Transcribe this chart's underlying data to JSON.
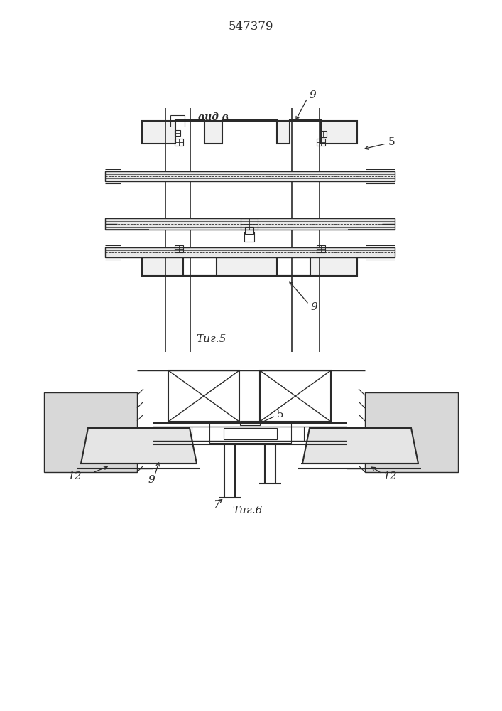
{
  "title": "547379",
  "title_fontsize": 12,
  "fig5_label": "Τиг.5",
  "fig6_label": "Τиг.6",
  "vid_label": "вид в",
  "background_color": "#ffffff",
  "line_color": "#2a2a2a",
  "label_9_top": "9",
  "label_5_fig5": "5",
  "label_9_bot": "9",
  "label_12_left": "12",
  "label_9_fig6": "9",
  "label_7": "7",
  "label_12_right": "12",
  "label_5_fig6": "5"
}
